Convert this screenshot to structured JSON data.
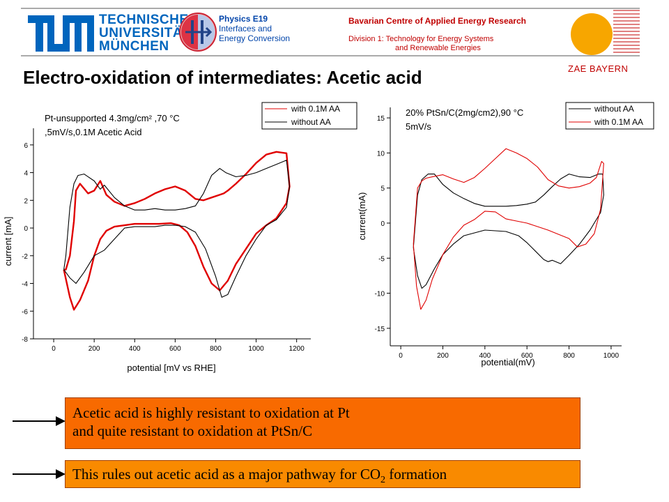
{
  "header": {
    "tum_words": [
      "TECHNISCHE",
      "UNIVERSITÄT",
      "MÜNCHEN"
    ],
    "physics_lines": [
      "Physics E19",
      "Interfaces and",
      "Energy Conversion"
    ],
    "zae_title": "Bavarian Centre of Applied Energy Research",
    "zae_division_lines": [
      "Division 1: Technology for Energy Systems",
      "and Renewable  Energies"
    ],
    "zae_name": "ZAE BAYERN",
    "colors": {
      "tum_blue": "#0065bd",
      "zae_red": "#c00000",
      "sun_orange": "#f7a600"
    }
  },
  "title": "Electro-oxidation of intermediates: Acetic acid",
  "chart_data": [
    {
      "type": "line",
      "annotation_lines": [
        "Pt-unsupported 4.3mg/cm² ,70 °C",
        ",5mV/s,0.1M Acetic Acid"
      ],
      "xlabel": "potential [mV vs RHE]",
      "ylabel": "current [mA]",
      "xlim": [
        -100,
        1270
      ],
      "ylim": [
        -8,
        7.2
      ],
      "xticks": [
        0,
        200,
        400,
        600,
        800,
        1000,
        1200
      ],
      "yticks": [
        -8,
        -6,
        -4,
        -2,
        0,
        2,
        4,
        6
      ],
      "legend_position": "top-right",
      "series": [
        {
          "name": "with 0.1M AA",
          "color": "#e00000",
          "x": [
            50,
            80,
            100,
            130,
            170,
            200,
            230,
            260,
            300,
            350,
            400,
            460,
            520,
            580,
            620,
            660,
            700,
            740,
            780,
            820,
            860,
            900,
            950,
            1000,
            1050,
            1100,
            1150,
            1165,
            1150,
            1100,
            1050,
            1000,
            950,
            900,
            860,
            840,
            820,
            780,
            740,
            700,
            650,
            600,
            550,
            500,
            450,
            400,
            350,
            300,
            260,
            230,
            200,
            170,
            130,
            110,
            100,
            80,
            60,
            50
          ],
          "y": [
            -3.0,
            -5.0,
            -5.9,
            -5.2,
            -3.8,
            -2.0,
            -0.8,
            -0.2,
            0.1,
            0.2,
            0.3,
            0.3,
            0.3,
            0.35,
            0.2,
            -0.3,
            -1.3,
            -2.8,
            -4.0,
            -4.5,
            -3.8,
            -2.6,
            -1.5,
            -0.4,
            0.2,
            0.7,
            1.8,
            3.0,
            5.4,
            5.5,
            5.3,
            4.7,
            3.9,
            3.2,
            2.7,
            2.5,
            2.4,
            2.2,
            2.0,
            2.1,
            2.7,
            3.0,
            2.8,
            2.5,
            2.1,
            1.8,
            1.6,
            1.9,
            2.4,
            3.4,
            2.7,
            2.5,
            3.2,
            2.7,
            0.5,
            -2.0,
            -3.0,
            -3.0
          ]
        },
        {
          "name": "without  AA",
          "color": "#000000",
          "x": [
            50,
            80,
            110,
            150,
            200,
            250,
            300,
            350,
            400,
            450,
            500,
            550,
            600,
            650,
            700,
            750,
            800,
            830,
            860,
            900,
            950,
            1000,
            1050,
            1100,
            1150,
            1165,
            1150,
            1100,
            1050,
            1000,
            950,
            900,
            850,
            820,
            780,
            740,
            700,
            650,
            600,
            550,
            500,
            450,
            400,
            350,
            300,
            250,
            230,
            200,
            150,
            120,
            100,
            80,
            60,
            50
          ],
          "y": [
            -3.0,
            -3.6,
            -4.0,
            -3.2,
            -2.0,
            -1.6,
            -0.8,
            0.0,
            0.1,
            0.1,
            0.1,
            0.2,
            0.2,
            0.1,
            -0.3,
            -1.5,
            -3.5,
            -5.0,
            -4.8,
            -3.5,
            -2.0,
            -0.8,
            0.2,
            0.6,
            1.5,
            3.0,
            4.9,
            4.6,
            4.3,
            4.0,
            3.8,
            3.7,
            4.0,
            4.3,
            3.8,
            2.5,
            1.6,
            1.4,
            1.3,
            1.3,
            1.4,
            1.3,
            1.3,
            1.6,
            2.2,
            3.1,
            2.8,
            3.4,
            3.9,
            3.8,
            3.2,
            1.5,
            -2.0,
            -3.0
          ]
        }
      ]
    },
    {
      "type": "line",
      "annotation_lines": [
        "20% PtSn/C(2mg/cm2),90 °C",
        "5mV/s"
      ],
      "xlabel": "potential(mV)",
      "ylabel": "current(mA)",
      "xlim": [
        -50,
        1050
      ],
      "ylim": [
        -17.5,
        16.5
      ],
      "xticks": [
        0,
        200,
        400,
        600,
        800,
        1000
      ],
      "yticks": [
        -15,
        -10,
        -5,
        0,
        5,
        10,
        15
      ],
      "legend_position": "top-right",
      "series": [
        {
          "name": "without AA",
          "color": "#000000",
          "x": [
            60,
            80,
            100,
            120,
            160,
            200,
            250,
            300,
            400,
            500,
            560,
            600,
            640,
            680,
            700,
            720,
            760,
            800,
            850,
            900,
            950,
            965,
            960,
            940,
            900,
            850,
            800,
            760,
            720,
            680,
            640,
            600,
            550,
            500,
            450,
            400,
            350,
            300,
            250,
            200,
            160,
            130,
            100,
            80,
            60
          ],
          "y": [
            -3.5,
            -7.5,
            -9.3,
            -8.8,
            -6.5,
            -4.5,
            -3.0,
            -1.8,
            -1.0,
            -1.2,
            -1.8,
            -2.8,
            -4.0,
            -5.2,
            -5.5,
            -5.3,
            -5.8,
            -4.6,
            -3.0,
            -1.0,
            1.5,
            4.0,
            7.0,
            7.0,
            6.5,
            6.6,
            7.0,
            6.3,
            5.2,
            4.0,
            3.0,
            2.7,
            2.5,
            2.4,
            2.4,
            2.4,
            2.8,
            3.5,
            4.3,
            5.5,
            7.0,
            7.0,
            6.2,
            4.0,
            -3.5
          ]
        },
        {
          "name": "with 0.1M AA",
          "color": "#e00000",
          "x": [
            60,
            75,
            95,
            120,
            150,
            200,
            250,
            300,
            350,
            400,
            450,
            500,
            550,
            600,
            650,
            700,
            750,
            800,
            840,
            880,
            920,
            950,
            965,
            955,
            930,
            900,
            850,
            800,
            750,
            700,
            650,
            600,
            550,
            500,
            450,
            400,
            350,
            300,
            250,
            200,
            150,
            120,
            100,
            80,
            60
          ],
          "y": [
            -3.0,
            -9.0,
            -12.3,
            -11.0,
            -8.0,
            -4.5,
            -2.0,
            -0.3,
            0.5,
            1.7,
            1.6,
            0.6,
            0.3,
            0.0,
            -0.5,
            -1.0,
            -1.6,
            -2.2,
            -3.4,
            -3.0,
            -1.5,
            2.0,
            8.5,
            8.8,
            6.5,
            5.7,
            5.2,
            5.0,
            5.3,
            6.2,
            8.0,
            9.2,
            10.0,
            10.6,
            9.2,
            7.8,
            6.5,
            5.8,
            6.3,
            6.9,
            6.6,
            6.4,
            6.0,
            5.0,
            -3.0
          ]
        }
      ]
    }
  ],
  "conclusions": {
    "box1_lines": [
      "Acetic acid is highly resistant to oxidation at Pt",
      "and quite resistant to oxidation at PtSn/C"
    ],
    "box2": {
      "text": "This rules out acetic acid as a major pathway for CO",
      "subscript": "2",
      "suffix": " formation"
    }
  }
}
